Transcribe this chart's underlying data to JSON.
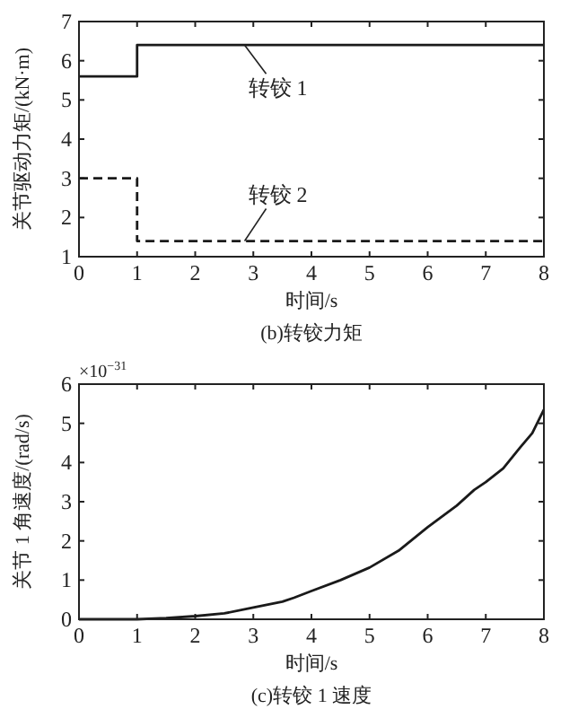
{
  "chart_data": [
    {
      "type": "line",
      "title": "(b)转铰力矩",
      "xlabel": "时间/s",
      "ylabel": "关节驱动力矩/(kN·m)",
      "xlim": [
        0,
        8
      ],
      "ylim": [
        1,
        7
      ],
      "xticks": [
        0,
        1,
        2,
        3,
        4,
        5,
        6,
        7,
        8
      ],
      "yticks": [
        1,
        2,
        3,
        4,
        5,
        6,
        7
      ],
      "grid": false,
      "series": [
        {
          "name": "转铰 1",
          "color": "#1a1a1a",
          "line_style": "solid",
          "x": [
            0,
            1,
            1,
            8
          ],
          "values": [
            5.6,
            5.6,
            6.4,
            6.4
          ]
        },
        {
          "name": "转铰 2",
          "color": "#1a1a1a",
          "line_style": "dashed",
          "x": [
            0,
            1,
            1,
            8
          ],
          "values": [
            3,
            3,
            1.4,
            1.4
          ]
        }
      ]
    },
    {
      "type": "line",
      "title": "(c)转铰 1 速度",
      "xlabel": "时间/s",
      "ylabel": "关节 1 角速度/(rad/s)",
      "annotations": [
        "×10$^{−31}$"
      ],
      "xlim": [
        0,
        8
      ],
      "ylim": [
        0,
        6
      ],
      "xticks": [
        0,
        1,
        2,
        3,
        4,
        5,
        6,
        7,
        8
      ],
      "yticks": [
        0,
        1,
        2,
        3,
        4,
        5,
        6
      ],
      "grid": false,
      "series": [
        {
          "color": "#1a1a1a",
          "line_style": "solid",
          "x": [
            0,
            1,
            1.5,
            2,
            2.5,
            3,
            3.5,
            3.7,
            4,
            4.5,
            5,
            5.5,
            6,
            6.5,
            6.8,
            7,
            7.3,
            7.6,
            7.8,
            8
          ],
          "values": [
            0,
            0,
            0.03,
            0.08,
            0.15,
            0.3,
            0.45,
            0.55,
            0.72,
            1.0,
            1.32,
            1.75,
            2.35,
            2.9,
            3.3,
            3.5,
            3.85,
            4.4,
            4.75,
            5.35
          ]
        }
      ]
    }
  ]
}
